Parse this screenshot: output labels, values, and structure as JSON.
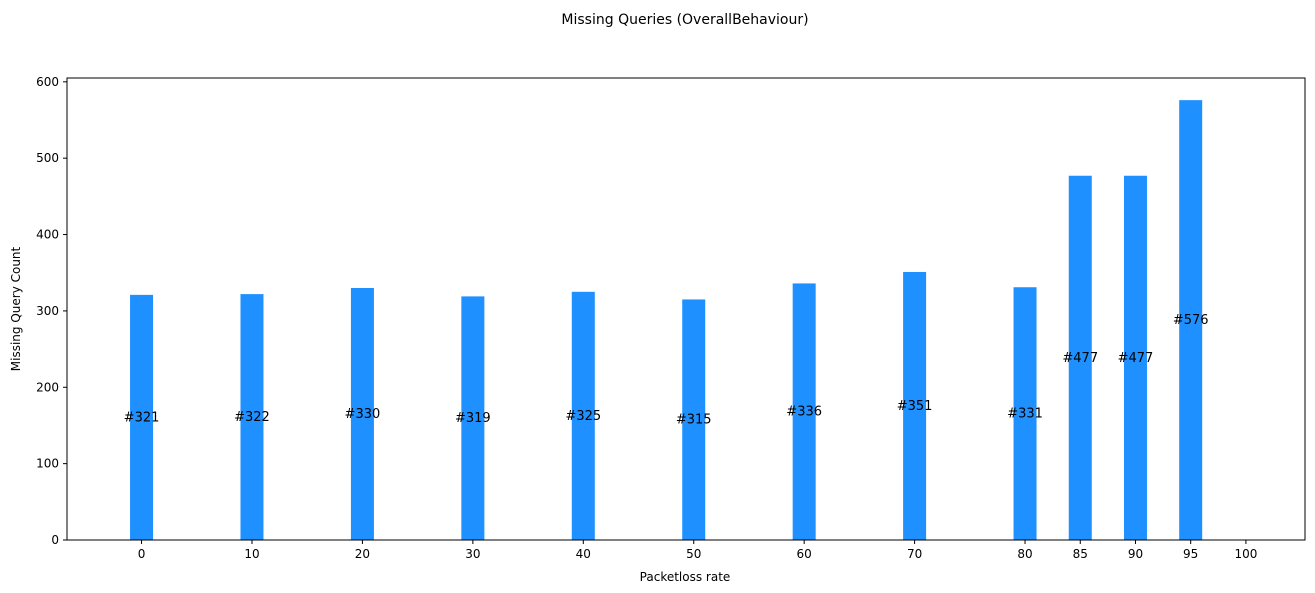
{
  "chart_data": {
    "type": "bar",
    "title": "Missing Queries (OverallBehaviour)",
    "xlabel": "Packetloss rate",
    "ylabel": "Missing Query Count",
    "x": [
      0,
      10,
      20,
      30,
      40,
      50,
      60,
      70,
      80,
      85,
      90,
      95,
      100
    ],
    "x_tick_labels": [
      "0",
      "10",
      "20",
      "30",
      "40",
      "50",
      "60",
      "70",
      "80",
      "85",
      "90",
      "95",
      "100"
    ],
    "values": [
      321,
      322,
      330,
      319,
      325,
      315,
      336,
      351,
      331,
      477,
      477,
      576,
      null
    ],
    "data_labels": [
      "#321",
      "#322",
      "#330",
      "#319",
      "#325",
      "#315",
      "#336",
      "#351",
      "#331",
      "#477",
      "#477",
      "#576",
      ""
    ],
    "ylim": [
      0,
      605
    ],
    "y_ticks": [
      0,
      100,
      200,
      300,
      400,
      500,
      600
    ],
    "grid": false,
    "bar_color": "#1e90ff"
  }
}
